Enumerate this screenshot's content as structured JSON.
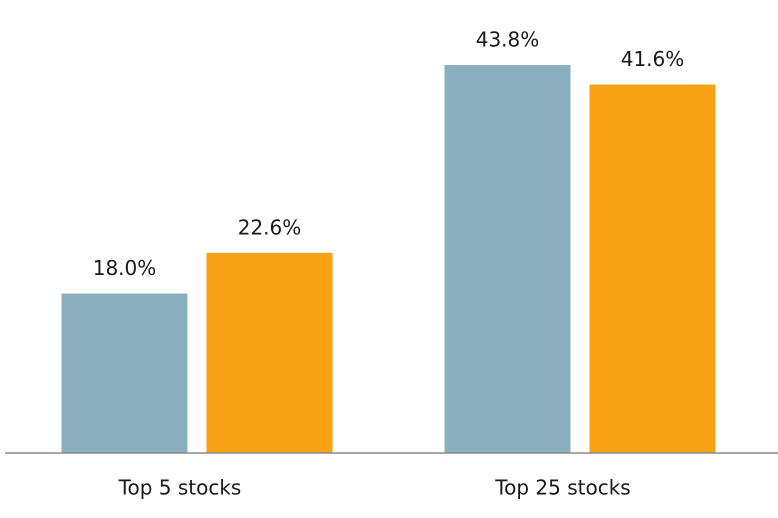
{
  "chart_data": {
    "type": "bar",
    "categories": [
      "Top 5 stocks",
      "Top 25 stocks"
    ],
    "series": [
      {
        "color": "#8aafbf",
        "values": [
          18.0,
          43.8
        ],
        "value_labels": [
          "18.0%",
          "43.8%"
        ]
      },
      {
        "color": "#f9a216",
        "values": [
          22.6,
          41.6
        ],
        "value_labels": [
          "22.6%",
          "41.6%"
        ]
      }
    ],
    "ylim": [
      0,
      50
    ]
  }
}
